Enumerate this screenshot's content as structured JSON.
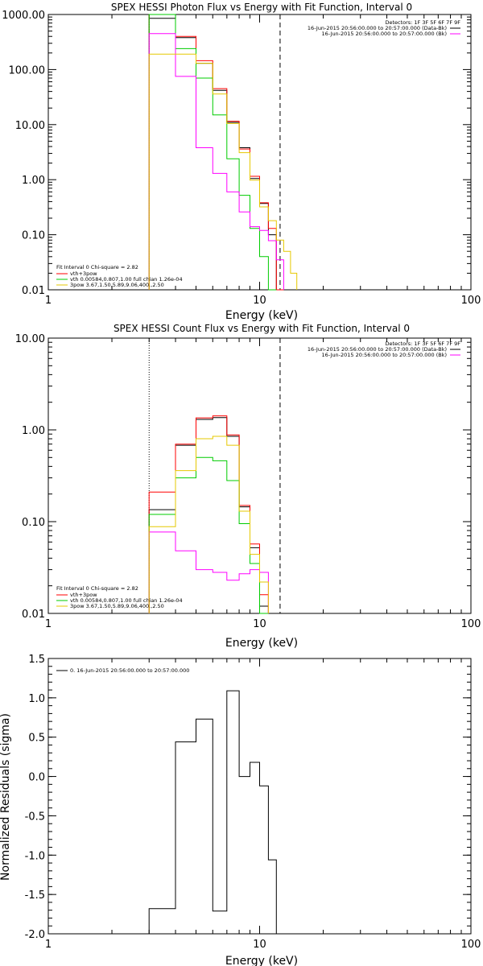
{
  "chart_data": [
    {
      "type": "line",
      "title": "SPEX HESSI Photon Flux vs Energy with Fit Function, Interval 0",
      "xlabel": "Energy (keV)",
      "ylabel": "",
      "xscale": "log",
      "yscale": "log",
      "xlim": [
        1,
        100
      ],
      "ylim": [
        0.01,
        1000
      ],
      "x_ticks": [
        "1",
        "10",
        "100"
      ],
      "y_ticks": [
        "0.01",
        "0.10",
        "1.00",
        "10.00",
        "100.00",
        "1000.00"
      ],
      "vlines": {
        "dotted": 3.0,
        "dashed": 12.5
      },
      "legend_top": {
        "detectors": "Detectors: 1F 3F 5F 6F 7F 9F",
        "entries": [
          "16-Jun-2015 20:56:00.000 to 20:57:00.000 (Data-Bk)",
          "16-Jun-2015 20:56:00.000 to 20:57:00.000 (Bk)"
        ]
      },
      "legend_bottom": {
        "fit": "Fit Interval 0   Chi-square = 2.82",
        "entries": [
          "vth+3pow",
          "vth 0.00584,0.807,1.00  full chian 1.26e-04",
          "3pow 3.67,1.50,5.89,9.06,400.,2.50"
        ]
      },
      "series": [
        {
          "color": "#000000",
          "edges": [
            3.0,
            4.0,
            5.0,
            6.0,
            7.0,
            8.0,
            9.0,
            10.0,
            11.0,
            12.0,
            13.0,
            14.0,
            15.0
          ],
          "values": [
            850,
            380,
            130,
            42,
            11,
            3.8,
            1.05,
            0.37,
            0.1,
            0.01,
            null,
            null
          ]
        },
        {
          "color": "#ff0000",
          "edges": [
            3.0,
            4.0,
            5.0,
            6.0,
            7.0,
            8.0,
            9.0,
            10.0,
            11.0,
            12.0,
            13.0,
            14.0,
            15.0
          ],
          "values": [
            1100,
            400,
            145,
            45,
            11.5,
            3.6,
            1.15,
            0.38,
            0.13,
            0.01,
            null,
            null
          ]
        },
        {
          "color": "#00cc00",
          "edges": [
            3.0,
            4.0,
            5.0,
            6.0,
            7.0,
            8.0,
            9.0,
            10.0,
            11.0,
            12.0,
            13.0,
            14.0,
            15.0
          ],
          "values": [
            1100,
            240,
            70,
            15,
            2.4,
            0.52,
            0.13,
            0.04,
            0.01,
            null,
            null,
            null
          ]
        },
        {
          "color": "#ff00ff",
          "edges": [
            3.0,
            4.0,
            5.0,
            6.0,
            7.0,
            8.0,
            9.0,
            10.0,
            11.0,
            12.0,
            13.0,
            14.0,
            15.0
          ],
          "values": [
            450,
            75,
            3.8,
            1.3,
            0.6,
            0.26,
            0.14,
            0.12,
            0.078,
            0.035,
            null,
            null
          ]
        },
        {
          "color": "#e6c800",
          "edges": [
            3.0,
            4.0,
            5.0,
            6.0,
            7.0,
            8.0,
            9.0,
            10.0,
            11.0,
            12.0,
            13.0,
            14.0,
            15.0
          ],
          "values": [
            190,
            190,
            130,
            36,
            10.5,
            3.1,
            0.98,
            0.32,
            0.18,
            0.08,
            0.05,
            0.02
          ]
        }
      ]
    },
    {
      "type": "line",
      "title": "SPEX HESSI Count Flux vs Energy with Fit Function, Interval 0",
      "xlabel": "Energy (keV)",
      "ylabel": "",
      "xscale": "log",
      "yscale": "log",
      "xlim": [
        1,
        100
      ],
      "ylim": [
        0.01,
        10
      ],
      "x_ticks": [
        "1",
        "10",
        "100"
      ],
      "y_ticks": [
        "0.01",
        "0.10",
        "1.00",
        "10.00"
      ],
      "vlines": {
        "dotted": 3.0,
        "dashed": 12.5
      },
      "legend_top": {
        "detectors": "Detectors: 1F 3F 5F 6F 7F 9F",
        "entries": [
          "16-Jun-2015 20:56:00.000 to 20:57:00.000 (Data-Bk)",
          "16-Jun-2015 20:56:00.000 to 20:57:00.000 (Bk)"
        ]
      },
      "legend_bottom": {
        "fit": "Fit Interval 0   Chi-square = 2.82",
        "entries": [
          "vth+3pow",
          "vth 0.00584,0.807,1.00  full chian 1.26e-04",
          "3pow 3.67,1.50,5.89,9.06,400.,2.50"
        ]
      },
      "series": [
        {
          "color": "#000000",
          "edges": [
            3.0,
            4.0,
            5.0,
            6.0,
            7.0,
            8.0,
            9.0,
            10.0,
            11.0,
            12.0
          ],
          "values": [
            0.135,
            0.68,
            1.3,
            1.36,
            0.85,
            0.145,
            0.052,
            0.012,
            null
          ]
        },
        {
          "color": "#ff0000",
          "edges": [
            3.0,
            4.0,
            5.0,
            6.0,
            7.0,
            8.0,
            9.0,
            10.0,
            11.0,
            12.0
          ],
          "values": [
            0.21,
            0.7,
            1.35,
            1.42,
            0.88,
            0.15,
            0.057,
            0.016,
            null
          ]
        },
        {
          "color": "#00cc00",
          "edges": [
            3.0,
            4.0,
            5.0,
            6.0,
            7.0,
            8.0,
            9.0,
            10.0,
            11.0,
            12.0
          ],
          "values": [
            0.12,
            0.3,
            0.5,
            0.46,
            0.28,
            0.095,
            0.035,
            0.01,
            null
          ]
        },
        {
          "color": "#ff00ff",
          "edges": [
            3.0,
            4.0,
            5.0,
            6.0,
            7.0,
            8.0,
            9.0,
            10.0,
            11.0,
            12.0
          ],
          "values": [
            0.077,
            0.048,
            0.03,
            0.028,
            0.023,
            0.027,
            0.03,
            0.028,
            null
          ]
        },
        {
          "color": "#e6c800",
          "edges": [
            3.0,
            4.0,
            5.0,
            6.0,
            7.0,
            8.0,
            9.0,
            10.0,
            11.0,
            12.0
          ],
          "values": [
            0.088,
            0.36,
            0.8,
            0.85,
            0.68,
            0.13,
            0.044,
            0.022,
            null
          ]
        }
      ]
    },
    {
      "type": "line",
      "title": "",
      "xlabel": "Energy (keV)",
      "ylabel": "Normalized Residuals (sigma)",
      "xscale": "log",
      "yscale": "linear",
      "xlim": [
        1,
        100
      ],
      "ylim": [
        -2.0,
        1.5
      ],
      "x_ticks": [
        "1",
        "10",
        "100"
      ],
      "y_ticks": [
        "-2.0",
        "-1.5",
        "-1.0",
        "-0.5",
        "0.0",
        "0.5",
        "1.0",
        "1.5"
      ],
      "legend": "0. 16-Jun-2015 20:56:00.000 to 20:57:00.000",
      "series": [
        {
          "color": "#000000",
          "edges": [
            3.0,
            4.0,
            5.0,
            6.0,
            7.0,
            8.0,
            9.0,
            10.0,
            11.0,
            12.0
          ],
          "values": [
            -1.68,
            0.44,
            0.73,
            -1.71,
            1.09,
            0.0,
            0.18,
            -0.12,
            -1.06
          ]
        }
      ]
    }
  ]
}
